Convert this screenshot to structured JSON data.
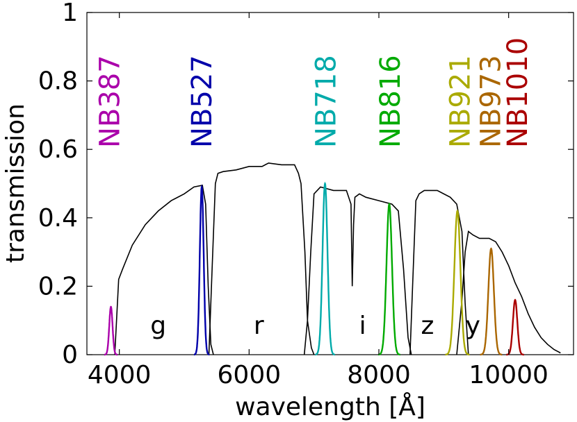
{
  "chart_data": {
    "type": "line",
    "xlabel": "wavelength [Å]",
    "ylabel": "transmission",
    "xlim": [
      3500,
      11000
    ],
    "ylim": [
      0,
      1
    ],
    "grid": false,
    "x_ticks": [
      4000,
      6000,
      8000,
      10000
    ],
    "x_tick_labels": [
      "4000",
      "6000",
      "8000",
      "10000"
    ],
    "y_ticks": [
      0,
      0.2,
      0.4,
      0.6,
      0.8,
      1
    ],
    "y_tick_labels": [
      "0",
      "0.2",
      "0.4",
      "0.6",
      "0.8",
      "1"
    ],
    "broadband": [
      {
        "name": "g",
        "color": "#000000",
        "label_x": 4600,
        "label_y": 0.085,
        "x": [
          3930,
          3990,
          4050,
          4200,
          4400,
          4600,
          4800,
          5000,
          5150,
          5280,
          5330,
          5370,
          5410,
          5450
        ],
        "y": [
          0.0,
          0.22,
          0.25,
          0.32,
          0.38,
          0.42,
          0.45,
          0.47,
          0.49,
          0.495,
          0.44,
          0.2,
          0.03,
          0.0
        ]
      },
      {
        "name": "r",
        "color": "#000000",
        "label_x": 6150,
        "label_y": 0.085,
        "x": [
          5380,
          5430,
          5480,
          5520,
          5600,
          5800,
          6000,
          6200,
          6300,
          6500,
          6700,
          6760,
          6800,
          6860,
          6900,
          6960,
          7000
        ],
        "y": [
          0.0,
          0.25,
          0.5,
          0.53,
          0.535,
          0.54,
          0.55,
          0.55,
          0.56,
          0.555,
          0.555,
          0.53,
          0.5,
          0.3,
          0.1,
          0.02,
          0.0
        ]
      },
      {
        "name": "i",
        "color": "#000000",
        "label_x": 7750,
        "label_y": 0.085,
        "x": [
          6850,
          6900,
          6950,
          7000,
          7100,
          7300,
          7500,
          7570,
          7590,
          7610,
          7630,
          7700,
          7800,
          8000,
          8200,
          8300,
          8380,
          8450,
          8500
        ],
        "y": [
          0.0,
          0.1,
          0.3,
          0.47,
          0.49,
          0.48,
          0.48,
          0.44,
          0.2,
          0.38,
          0.46,
          0.47,
          0.46,
          0.45,
          0.44,
          0.42,
          0.25,
          0.05,
          0.0
        ]
      },
      {
        "name": "z",
        "color": "#000000",
        "label_x": 8750,
        "label_y": 0.085,
        "x": [
          8480,
          8520,
          8570,
          8620,
          8700,
          8900,
          9100,
          9200,
          9280,
          9330,
          9380
        ],
        "y": [
          0.0,
          0.2,
          0.45,
          0.47,
          0.48,
          0.48,
          0.46,
          0.44,
          0.36,
          0.15,
          0.0
        ]
      },
      {
        "name": "y",
        "color": "#000000",
        "label_x": 9450,
        "label_y": 0.085,
        "x": [
          9200,
          9280,
          9330,
          9380,
          9450,
          9550,
          9700,
          9800,
          9900,
          10000,
          10100,
          10200,
          10300,
          10400,
          10500,
          10600,
          10700,
          10800
        ],
        "y": [
          0.0,
          0.16,
          0.3,
          0.36,
          0.35,
          0.34,
          0.34,
          0.33,
          0.3,
          0.26,
          0.21,
          0.17,
          0.12,
          0.08,
          0.05,
          0.03,
          0.015,
          0.005
        ]
      }
    ],
    "narrowband": [
      {
        "name": "NB387",
        "color": "#aa00aa",
        "center": 3870,
        "peak": 0.14,
        "fwhm": 60,
        "label_x": 3850
      },
      {
        "name": "NB527",
        "color": "#0000aa",
        "center": 5270,
        "peak": 0.49,
        "fwhm": 70,
        "label_x": 5270
      },
      {
        "name": "NB718",
        "color": "#00aaaa",
        "center": 7170,
        "peak": 0.5,
        "fwhm": 90,
        "label_x": 7180
      },
      {
        "name": "NB816",
        "color": "#00aa00",
        "center": 8160,
        "peak": 0.44,
        "fwhm": 100,
        "label_x": 8170
      },
      {
        "name": "NB921",
        "color": "#aaaa00",
        "center": 9210,
        "peak": 0.42,
        "fwhm": 110,
        "label_x": 9250
      },
      {
        "name": "NB973",
        "color": "#aa6600",
        "center": 9730,
        "peak": 0.31,
        "fwhm": 100,
        "label_x": 9720
      },
      {
        "name": "NB1010",
        "color": "#aa0000",
        "center": 10100,
        "peak": 0.16,
        "fwhm": 80,
        "label_x": 10130
      }
    ]
  }
}
